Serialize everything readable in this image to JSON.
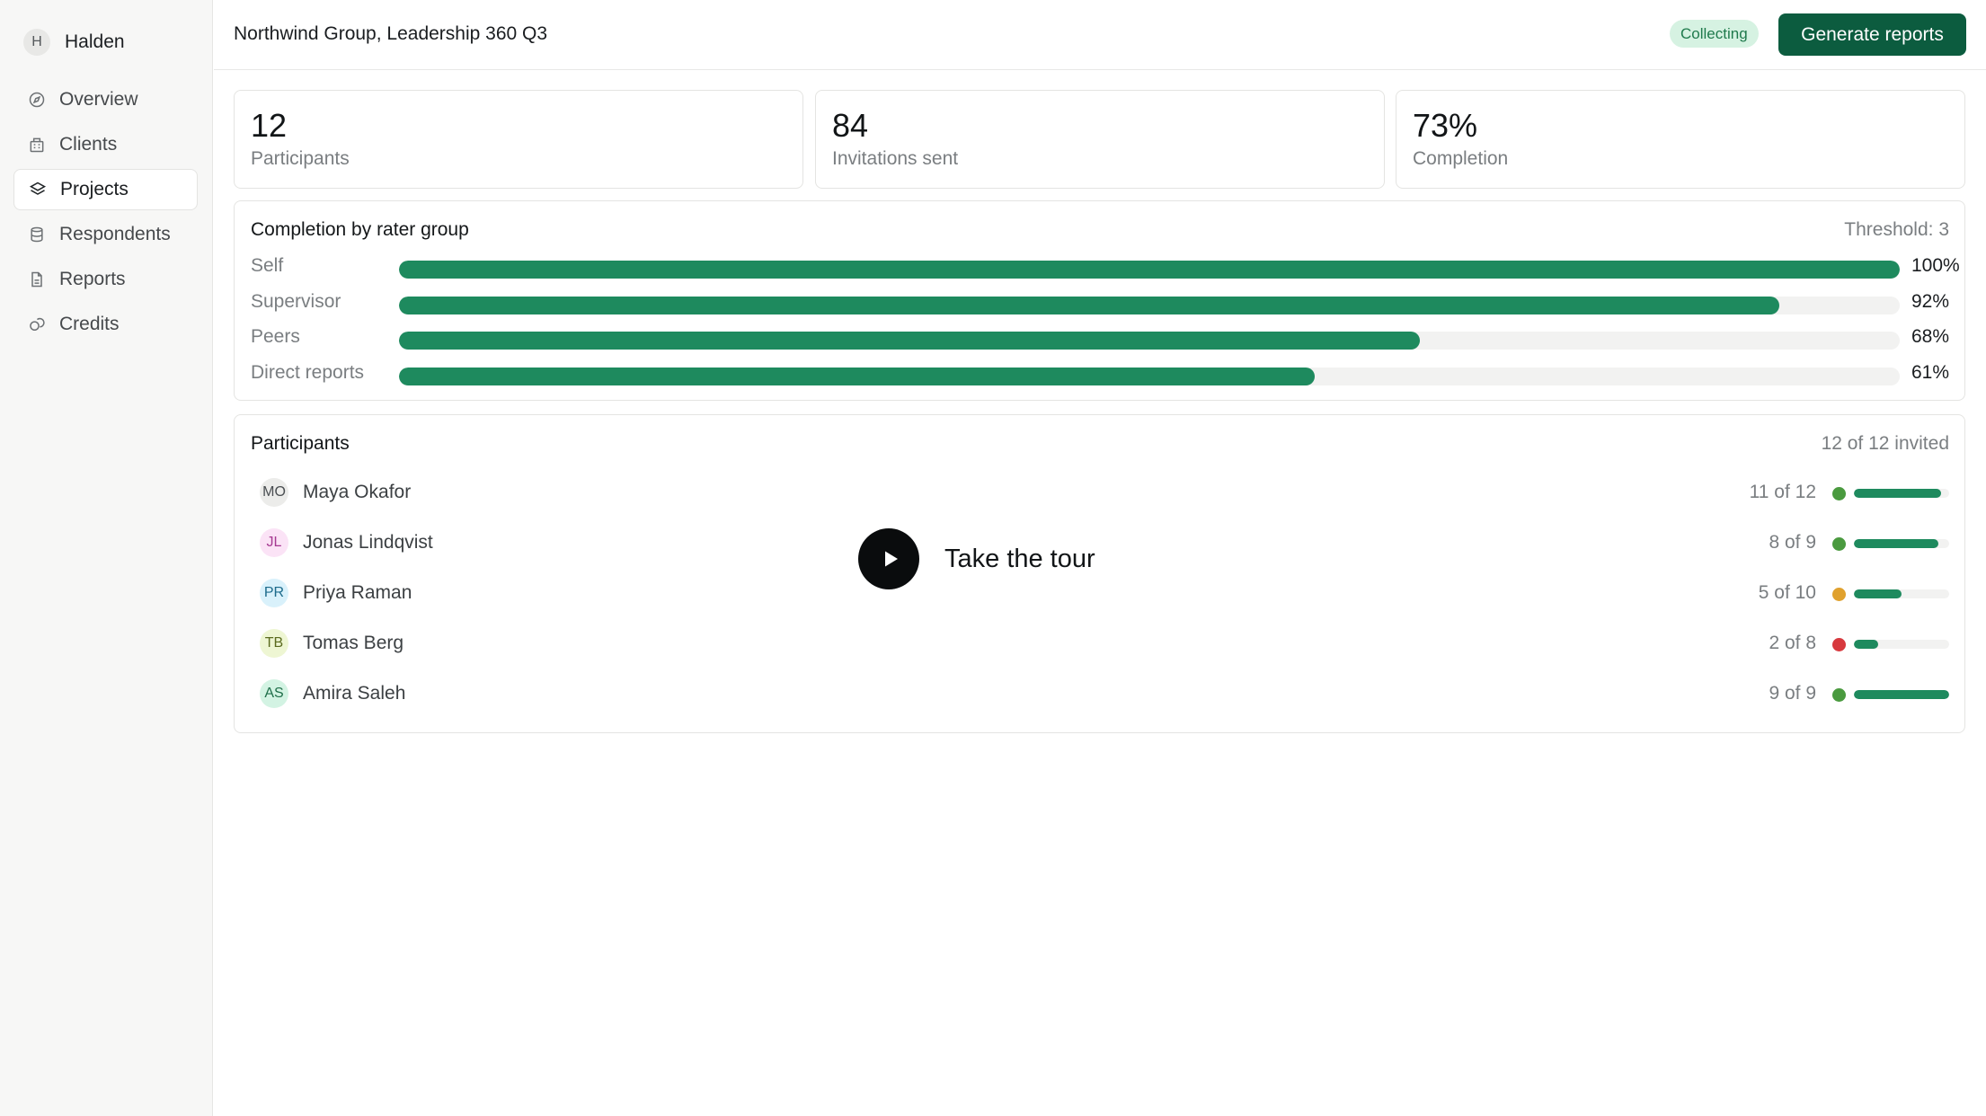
{
  "brand": {
    "initial": "H",
    "name": "Halden"
  },
  "nav": [
    {
      "label": "Overview",
      "icon": "compass-icon",
      "active": false
    },
    {
      "label": "Clients",
      "icon": "building-icon",
      "active": false
    },
    {
      "label": "Projects",
      "icon": "layers-icon",
      "active": true
    },
    {
      "label": "Respondents",
      "icon": "database-icon",
      "active": false
    },
    {
      "label": "Reports",
      "icon": "document-icon",
      "active": false
    },
    {
      "label": "Credits",
      "icon": "coins-icon",
      "active": false
    }
  ],
  "header": {
    "title": "Northwind Group, Leadership 360 Q3",
    "status": "Collecting",
    "generate_label": "Generate reports"
  },
  "stats": [
    {
      "value": "12",
      "label": "Participants"
    },
    {
      "value": "84",
      "label": "Invitations sent"
    },
    {
      "value": "73%",
      "label": "Completion"
    }
  ],
  "rater_groups": {
    "title": "Completion by rater group",
    "threshold": "Threshold: 3",
    "rows": [
      {
        "label": "Self",
        "value": "100%",
        "percent": 100
      },
      {
        "label": "Supervisor",
        "value": "92%",
        "percent": 92
      },
      {
        "label": "Peers",
        "value": "68%",
        "percent": 68
      },
      {
        "label": "Direct reports",
        "value": "61%",
        "percent": 61
      }
    ]
  },
  "participants": {
    "title": "Participants",
    "invited": "12 of 12 invited",
    "rows": [
      {
        "initials": "MO",
        "name": "Maya Okafor",
        "count": "11 of 12",
        "done": 11,
        "total": 12,
        "status_color": "#4a9a3f",
        "avatar_bg": "#ececea",
        "avatar_fg": "#4a4e51"
      },
      {
        "initials": "JL",
        "name": "Jonas Lindqvist",
        "count": "8 of 9",
        "done": 8,
        "total": 9,
        "status_color": "#4a9a3f",
        "avatar_bg": "#fbe3f6",
        "avatar_fg": "#a63a92"
      },
      {
        "initials": "PR",
        "name": "Priya Raman",
        "count": "5 of 10",
        "done": 5,
        "total": 10,
        "status_color": "#e0a12e",
        "avatar_bg": "#d9f1fb",
        "avatar_fg": "#1d6b8c"
      },
      {
        "initials": "TB",
        "name": "Tomas Berg",
        "count": "2 of 8",
        "done": 2,
        "total": 8,
        "status_color": "#d7393e",
        "avatar_bg": "#eef6d3",
        "avatar_fg": "#5b6b1f"
      },
      {
        "initials": "AS",
        "name": "Amira Saleh",
        "count": "9 of 9",
        "done": 9,
        "total": 9,
        "status_color": "#4a9a3f",
        "avatar_bg": "#d3f3e3",
        "avatar_fg": "#1f6e49"
      }
    ]
  },
  "tour": {
    "label": "Take the tour",
    "icon": "play-icon"
  },
  "colors": {
    "accent": "#0c5c3f",
    "bar": "#1e8a5e",
    "badge_bg": "#d6f2e2",
    "badge_fg": "#1f7a4c"
  }
}
